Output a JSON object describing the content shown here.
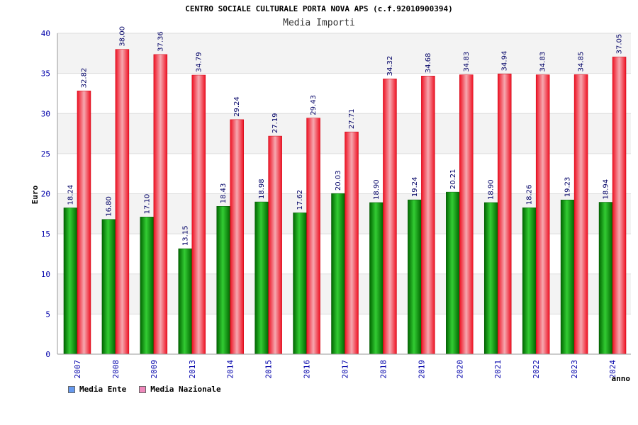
{
  "chart_data": {
    "type": "bar",
    "title": "CENTRO SOCIALE CULTURALE PORTA NOVA APS (c.f.92010900394)",
    "subtitle": "Media Importi",
    "ylabel": "Euro",
    "xlabel": "anno",
    "ylim": [
      0,
      40
    ],
    "yticks": [
      0,
      5,
      10,
      15,
      20,
      25,
      30,
      35,
      40
    ],
    "grid": true,
    "legend_position": "bottom-left",
    "categories": [
      "2007",
      "2008",
      "2009",
      "2013",
      "2014",
      "2015",
      "2016",
      "2017",
      "2018",
      "2019",
      "2020",
      "2021",
      "2022",
      "2023",
      "2024"
    ],
    "series": [
      {
        "name": "Media Ente",
        "color": "#22aa22",
        "legend_color": "#6699ee",
        "values": [
          18.24,
          16.8,
          17.1,
          13.15,
          18.43,
          18.98,
          17.62,
          20.03,
          18.9,
          19.24,
          20.21,
          18.9,
          18.26,
          19.23,
          18.94
        ],
        "labels": [
          "18.24",
          "16.80",
          "17.10",
          "13.15",
          "18.43",
          "18.98",
          "17.62",
          "20.03",
          "18.90",
          "19.24",
          "20.21",
          "18.90",
          "18.26",
          "19.23",
          "18.94"
        ]
      },
      {
        "name": "Media Nazionale",
        "color": "#ee2233",
        "legend_color": "#ee88bb",
        "values": [
          32.82,
          38.0,
          37.36,
          34.79,
          29.24,
          27.19,
          29.43,
          27.71,
          34.32,
          34.68,
          34.83,
          34.94,
          34.83,
          34.85,
          37.05
        ],
        "labels": [
          "32.82",
          "38.00",
          "37.36",
          "34.79",
          "29.24",
          "27.19",
          "29.43",
          "27.71",
          "34.32",
          "34.68",
          "34.83",
          "34.94",
          "34.83",
          "34.85",
          "37.05"
        ]
      }
    ]
  }
}
